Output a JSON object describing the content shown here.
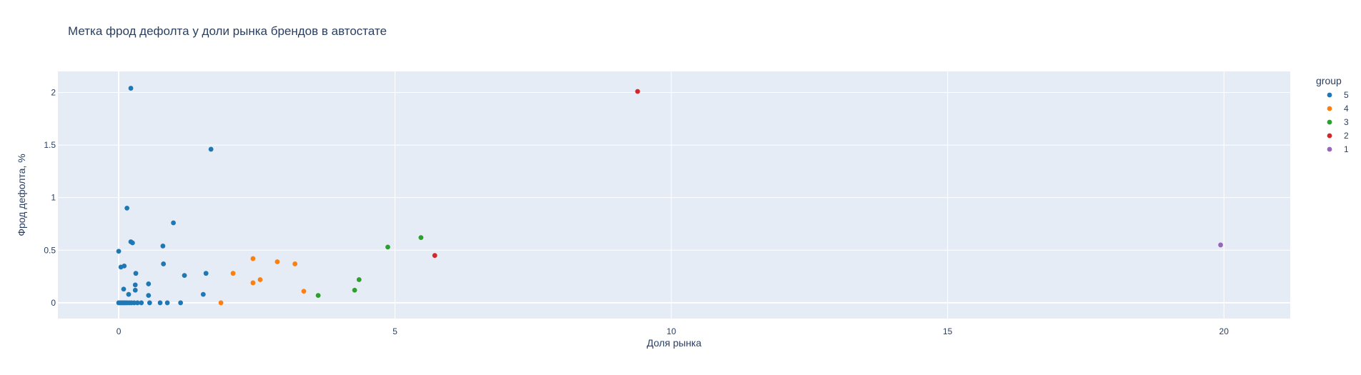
{
  "chart_data": {
    "type": "scatter",
    "title": "Метка фрод дефолта у доли рынка брендов в автостате",
    "xlabel": "Доля рынка",
    "ylabel": "Фрод дефолта, %",
    "xlim": [
      -1.1,
      21.2
    ],
    "ylim": [
      -0.15,
      2.2
    ],
    "x_ticks": [
      0,
      5,
      10,
      15,
      20
    ],
    "y_ticks": [
      0,
      0.5,
      1,
      1.5,
      2
    ],
    "x_tick_labels": [
      "0",
      "5",
      "10",
      "15",
      "20"
    ],
    "y_tick_labels": [
      "0",
      "0.5",
      "1",
      "1.5",
      "2"
    ],
    "grid": true,
    "plot_background": "#e5ecf6",
    "gridline_color": "#ffffff",
    "legend": {
      "title": "group",
      "placement": "right"
    },
    "series": [
      {
        "name": "5",
        "color": "#1f77b4",
        "points": [
          [
            0.22,
            2.04
          ],
          [
            1.67,
            1.46
          ],
          [
            0.15,
            0.9
          ],
          [
            0.99,
            0.76
          ],
          [
            0.22,
            0.58
          ],
          [
            0.25,
            0.57
          ],
          [
            0.8,
            0.54
          ],
          [
            0.0,
            0.49
          ],
          [
            0.81,
            0.37
          ],
          [
            0.1,
            0.35
          ],
          [
            0.04,
            0.34
          ],
          [
            0.31,
            0.28
          ],
          [
            1.58,
            0.28
          ],
          [
            1.19,
            0.26
          ],
          [
            0.54,
            0.18
          ],
          [
            0.3,
            0.17
          ],
          [
            0.09,
            0.13
          ],
          [
            0.3,
            0.12
          ],
          [
            0.18,
            0.08
          ],
          [
            0.54,
            0.07
          ],
          [
            1.53,
            0.08
          ],
          [
            0.0,
            0.0
          ],
          [
            0.03,
            0.0
          ],
          [
            0.06,
            0.0
          ],
          [
            0.09,
            0.0
          ],
          [
            0.12,
            0.0
          ],
          [
            0.15,
            0.0
          ],
          [
            0.19,
            0.0
          ],
          [
            0.23,
            0.0
          ],
          [
            0.28,
            0.0
          ],
          [
            0.34,
            0.0
          ],
          [
            0.41,
            0.0
          ],
          [
            0.56,
            0.0
          ],
          [
            0.75,
            0.0
          ],
          [
            0.88,
            0.0
          ],
          [
            1.12,
            0.0
          ]
        ]
      },
      {
        "name": "4",
        "color": "#ff7f0e",
        "points": [
          [
            2.43,
            0.42
          ],
          [
            2.87,
            0.39
          ],
          [
            3.19,
            0.37
          ],
          [
            2.07,
            0.28
          ],
          [
            2.56,
            0.22
          ],
          [
            2.43,
            0.19
          ],
          [
            3.35,
            0.11
          ],
          [
            1.85,
            0.0
          ]
        ]
      },
      {
        "name": "3",
        "color": "#2ca02c",
        "points": [
          [
            5.47,
            0.62
          ],
          [
            4.87,
            0.53
          ],
          [
            4.35,
            0.22
          ],
          [
            4.27,
            0.12
          ],
          [
            3.61,
            0.07
          ]
        ]
      },
      {
        "name": "2",
        "color": "#d62728",
        "points": [
          [
            9.39,
            2.01
          ],
          [
            5.72,
            0.45
          ]
        ]
      },
      {
        "name": "1",
        "color": "#9467bd",
        "points": [
          [
            19.94,
            0.55
          ]
        ]
      }
    ]
  }
}
